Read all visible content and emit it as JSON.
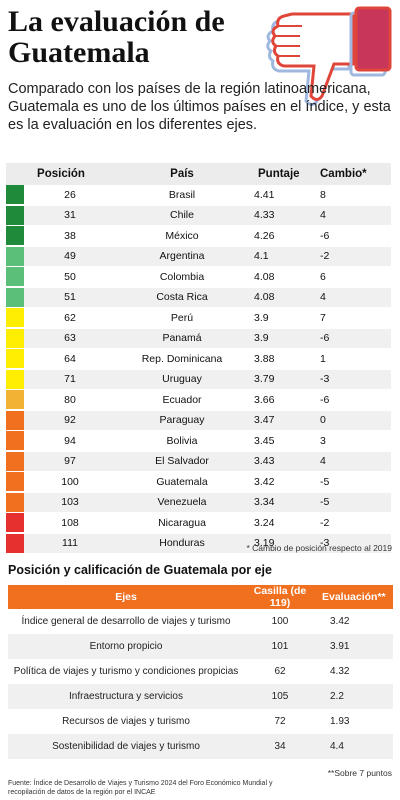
{
  "title": "La evaluación de Guatemala",
  "subtitle": "Comparado con los países de la región latinoamericana, Guatemala es uno de los últimos países en el índice, y esta es la evaluación en los diferentes ejes.",
  "icon": "thumbs-down-icon",
  "ranking": {
    "headers": {
      "pos": "Posición",
      "pais": "País",
      "puntaje": "Puntaje",
      "cambio": "Cambio*"
    },
    "rows": [
      {
        "pos": "26",
        "pais": "Brasil",
        "puntaje": "4.41",
        "cambio": "8",
        "color": "#1f8a3a"
      },
      {
        "pos": "31",
        "pais": "Chile",
        "puntaje": "4.33",
        "cambio": "4",
        "color": "#1f8a3a"
      },
      {
        "pos": "38",
        "pais": "México",
        "puntaje": "4.26",
        "cambio": "-6",
        "color": "#1f8a3a"
      },
      {
        "pos": "49",
        "pais": "Argentina",
        "puntaje": "4.1",
        "cambio": "-2",
        "color": "#5bbf7a"
      },
      {
        "pos": "50",
        "pais": "Colombia",
        "puntaje": "4.08",
        "cambio": "6",
        "color": "#5bbf7a"
      },
      {
        "pos": "51",
        "pais": "Costa Rica",
        "puntaje": "4.08",
        "cambio": "4",
        "color": "#5bbf7a"
      },
      {
        "pos": "62",
        "pais": "Perú",
        "puntaje": "3.9",
        "cambio": "7",
        "color": "#ffee00"
      },
      {
        "pos": "63",
        "pais": "Panamá",
        "puntaje": "3.9",
        "cambio": "-6",
        "color": "#ffee00"
      },
      {
        "pos": "64",
        "pais": "Rep. Dominicana",
        "puntaje": "3.88",
        "cambio": "1",
        "color": "#ffee00"
      },
      {
        "pos": "71",
        "pais": "Uruguay",
        "puntaje": "3.79",
        "cambio": "-3",
        "color": "#ffee00"
      },
      {
        "pos": "80",
        "pais": "Ecuador",
        "puntaje": "3.66",
        "cambio": "-6",
        "color": "#f2b233"
      },
      {
        "pos": "92",
        "pais": "Paraguay",
        "puntaje": "3.47",
        "cambio": "0",
        "color": "#f07020"
      },
      {
        "pos": "94",
        "pais": "Bolivia",
        "puntaje": "3.45",
        "cambio": "3",
        "color": "#f07020"
      },
      {
        "pos": "97",
        "pais": "El Salvador",
        "puntaje": "3.43",
        "cambio": "4",
        "color": "#f07020"
      },
      {
        "pos": "100",
        "pais": "Guatemala",
        "puntaje": "3.42",
        "cambio": "-5",
        "color": "#f07020"
      },
      {
        "pos": "103",
        "pais": "Venezuela",
        "puntaje": "3.34",
        "cambio": "-5",
        "color": "#f07020"
      },
      {
        "pos": "108",
        "pais": "Nicaragua",
        "puntaje": "3.24",
        "cambio": "-2",
        "color": "#e63030"
      },
      {
        "pos": "111",
        "pais": "Honduras",
        "puntaje": "3.19",
        "cambio": "-3",
        "color": "#e63030"
      }
    ]
  },
  "footnote1": "* Cambio de posición respecto al 2019",
  "section_title": "Posición y calificación de Guatemala por eje",
  "axes": {
    "headers": {
      "ejes": "Ejes",
      "casilla": "Casilla (de 119)",
      "evaluacion": "Evaluación**"
    },
    "rows": [
      {
        "eje": "Índice general de desarrollo de viajes y turismo",
        "casilla": "100",
        "evaluacion": "3.42"
      },
      {
        "eje": "Entorno propicio",
        "casilla": "101",
        "evaluacion": "3.91"
      },
      {
        "eje": "Política de viajes y turismo y condiciones propicias",
        "casilla": "62",
        "evaluacion": "4.32"
      },
      {
        "eje": "Infraestructura y servicios",
        "casilla": "105",
        "evaluacion": "2.2"
      },
      {
        "eje": "Recursos de viajes y turismo",
        "casilla": "72",
        "evaluacion": "1.93"
      },
      {
        "eje": "Sostenibilidad de viajes y turismo",
        "casilla": "34",
        "evaluacion": "4.4"
      }
    ]
  },
  "footnote2": "**Sobre 7 puntos",
  "source": "Fuente: Índice de Desarrollo de Viajes y Turismo 2024 del Foro Económico Mundial y recopilación de datos de la región por el INCAE",
  "colors": {
    "accent": "#f07020",
    "thumb": "#c8375a",
    "thumb_outline": "#e0453a"
  }
}
